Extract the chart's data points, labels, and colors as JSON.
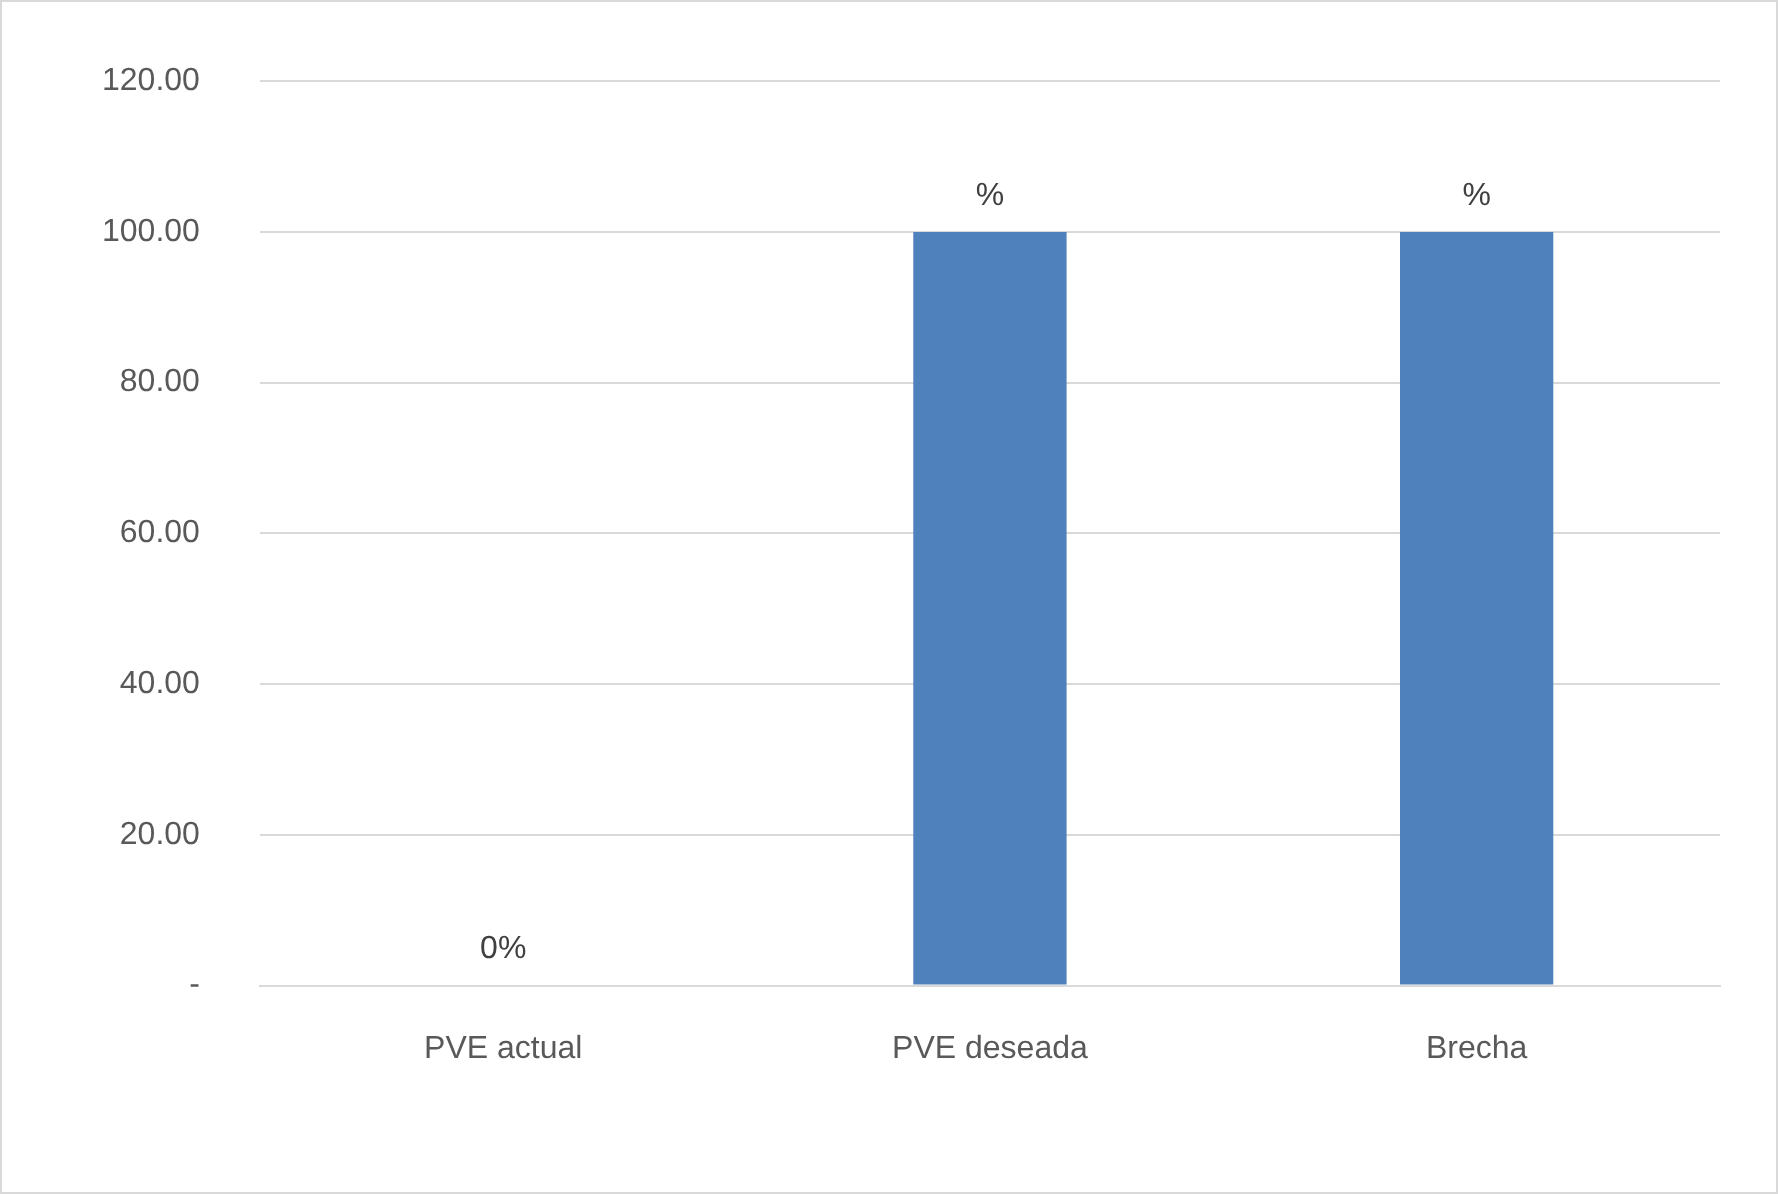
{
  "chart_data": {
    "type": "bar",
    "categories": [
      "PVE actual",
      "PVE deseada",
      "Brecha"
    ],
    "values": [
      0,
      100,
      100
    ],
    "value_labels": [
      "0%",
      "%",
      "%"
    ],
    "color": "#4f81bd",
    "ylim": [
      0,
      120
    ],
    "yticks": [
      {
        "value": 0,
        "label": "-"
      },
      {
        "value": 20,
        "label": "20.00"
      },
      {
        "value": 40,
        "label": "40.00"
      },
      {
        "value": 60,
        "label": "60.00"
      },
      {
        "value": 80,
        "label": "80.00"
      },
      {
        "value": 100,
        "label": "100.00"
      },
      {
        "value": 120,
        "label": "120.00"
      }
    ],
    "grid": "y",
    "legend": false
  }
}
